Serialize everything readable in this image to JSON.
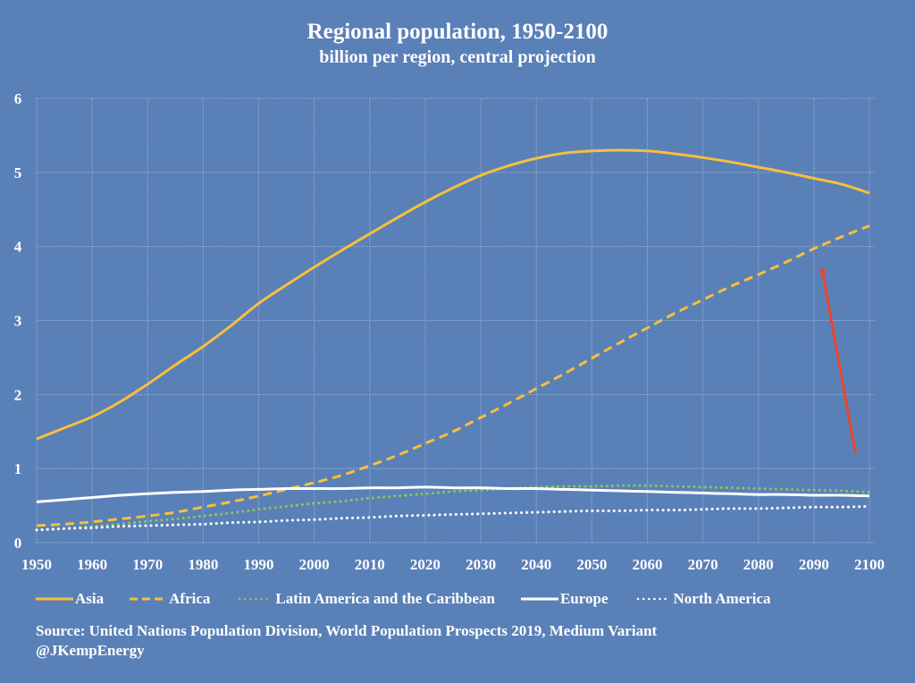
{
  "chart_data": {
    "type": "line",
    "title": "Regional population, 1950-2100",
    "subtitle": "billion per region, central projection",
    "xlabel": "",
    "ylabel": "",
    "xlim": [
      1950,
      2100
    ],
    "ylim": [
      0,
      6
    ],
    "grid": true,
    "legend_position": "bottom",
    "x_ticks": [
      1950,
      1960,
      1970,
      1980,
      1990,
      2000,
      2010,
      2020,
      2030,
      2040,
      2050,
      2060,
      2070,
      2080,
      2090,
      2100
    ],
    "y_ticks": [
      0,
      1,
      2,
      3,
      4,
      5,
      6
    ],
    "x": [
      1950,
      1955,
      1960,
      1965,
      1970,
      1975,
      1980,
      1985,
      1990,
      1995,
      2000,
      2005,
      2010,
      2015,
      2020,
      2025,
      2030,
      2035,
      2040,
      2045,
      2050,
      2055,
      2060,
      2065,
      2070,
      2075,
      2080,
      2085,
      2090,
      2095,
      2100
    ],
    "series": [
      {
        "name": "Asia",
        "style": "solid",
        "color": "#f6c03c",
        "values": [
          1.4,
          1.55,
          1.7,
          1.9,
          2.14,
          2.4,
          2.65,
          2.93,
          3.23,
          3.48,
          3.72,
          3.95,
          4.17,
          4.39,
          4.6,
          4.79,
          4.96,
          5.09,
          5.19,
          5.26,
          5.29,
          5.3,
          5.29,
          5.25,
          5.2,
          5.14,
          5.07,
          5.0,
          4.92,
          4.84,
          4.72
        ]
      },
      {
        "name": "Africa",
        "style": "dashed",
        "color": "#f6c03c",
        "values": [
          0.23,
          0.25,
          0.28,
          0.32,
          0.36,
          0.41,
          0.48,
          0.55,
          0.63,
          0.72,
          0.81,
          0.91,
          1.04,
          1.18,
          1.34,
          1.5,
          1.69,
          1.88,
          2.08,
          2.28,
          2.49,
          2.7,
          2.9,
          3.1,
          3.28,
          3.46,
          3.62,
          3.79,
          3.97,
          4.13,
          4.28
        ]
      },
      {
        "name": "Latin America and the Caribbean",
        "style": "dotted",
        "color": "#8fc45a",
        "values": [
          0.17,
          0.19,
          0.22,
          0.25,
          0.29,
          0.32,
          0.36,
          0.4,
          0.45,
          0.49,
          0.53,
          0.56,
          0.6,
          0.63,
          0.66,
          0.69,
          0.71,
          0.73,
          0.75,
          0.76,
          0.76,
          0.77,
          0.77,
          0.76,
          0.75,
          0.74,
          0.73,
          0.72,
          0.71,
          0.7,
          0.68
        ]
      },
      {
        "name": "Europe",
        "style": "solid",
        "color": "#ffffff",
        "values": [
          0.55,
          0.58,
          0.61,
          0.64,
          0.66,
          0.68,
          0.69,
          0.71,
          0.72,
          0.73,
          0.73,
          0.73,
          0.74,
          0.74,
          0.75,
          0.74,
          0.74,
          0.73,
          0.73,
          0.72,
          0.71,
          0.7,
          0.69,
          0.68,
          0.67,
          0.66,
          0.65,
          0.65,
          0.64,
          0.64,
          0.63
        ]
      },
      {
        "name": "North America",
        "style": "dotted",
        "color": "#ffffff",
        "values": [
          0.17,
          0.19,
          0.2,
          0.22,
          0.23,
          0.24,
          0.25,
          0.27,
          0.28,
          0.3,
          0.31,
          0.33,
          0.34,
          0.36,
          0.37,
          0.38,
          0.39,
          0.4,
          0.41,
          0.42,
          0.43,
          0.43,
          0.44,
          0.44,
          0.45,
          0.46,
          0.46,
          0.47,
          0.48,
          0.48,
          0.49
        ]
      }
    ],
    "annotations": [
      {
        "type": "arrow",
        "color": "#e8472a",
        "from": [
          2097.5,
          1.2
        ],
        "to": [
          2091.5,
          3.78
        ],
        "points_to": "Africa"
      }
    ],
    "source": "Source: United Nations Population Division, World Population Prospects 2019, Medium Variant",
    "credit": "@JKempEnergy"
  }
}
